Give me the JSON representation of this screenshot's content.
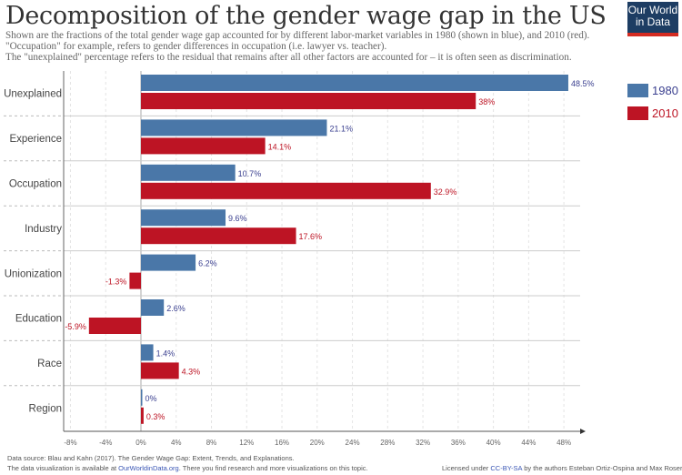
{
  "header": {
    "title": "Decomposition of the gender wage gap in the US",
    "subtitle_lines": [
      "Shown are the fractions of the total gender wage gap accounted for by different labor-market variables in 1980 (shown in blue), and 2010 (red).",
      "\"Occupation\" for example, refers to gender differences in occupation (i.e. lawyer vs. teacher).",
      "The \"unexplained\" percentage refers to the residual that remains after all other factors are accounted for – it is often seen as discrimination."
    ],
    "logo_line1": "Our World",
    "logo_line2": "in Data"
  },
  "footer": {
    "source": "Data source: Blau and Kahn (2017). The Gender Wage Gap: Extent, Trends, and Explanations.",
    "availability_prefix": "The data visualization is available at ",
    "availability_link": "OurWorldinData.org",
    "availability_suffix": ". There you find research and more visualizations on this topic.",
    "license_prefix": "Licensed under ",
    "license_link": "CC-BY-SA",
    "license_suffix": " by the authors Esteban Ortiz-Ospina and Max Roser."
  },
  "chart_data": {
    "type": "bar",
    "orientation": "horizontal",
    "title": "Decomposition of the gender wage gap in the US",
    "xlabel": "",
    "ylabel": "",
    "categories": [
      "Unexplained",
      "Experience",
      "Occupation",
      "Industry",
      "Unionization",
      "Education",
      "Race",
      "Region"
    ],
    "series": [
      {
        "name": "1980",
        "color": "#4a77a8",
        "label_color": "#3a3f8f",
        "values": [
          48.5,
          21.1,
          10.7,
          9.6,
          6.2,
          2.6,
          1.4,
          0
        ],
        "labels": [
          "48.5%",
          "21.1%",
          "10.7%",
          "9.6%",
          "6.2%",
          "2.6%",
          "1.4%",
          "0%"
        ]
      },
      {
        "name": "2010",
        "color": "#bd1424",
        "label_color": "#bd1424",
        "values": [
          38,
          14.1,
          32.9,
          17.6,
          -1.3,
          -5.9,
          4.3,
          0.3
        ],
        "labels": [
          "38%",
          "14.1%",
          "32.9%",
          "17.6%",
          "-1.3%",
          "-5.9%",
          "4.3%",
          "0.3%"
        ]
      }
    ],
    "xlim": [
      -8,
      50
    ],
    "xticks": [
      -8,
      -4,
      0,
      4,
      8,
      12,
      16,
      20,
      24,
      28,
      32,
      36,
      40,
      44,
      48
    ],
    "xtick_labels": [
      "-8%",
      "-4%",
      "0%",
      "4%",
      "8%",
      "12%",
      "16%",
      "20%",
      "24%",
      "28%",
      "32%",
      "36%",
      "40%",
      "44%",
      "48%"
    ],
    "grid": true,
    "legend": "right"
  }
}
